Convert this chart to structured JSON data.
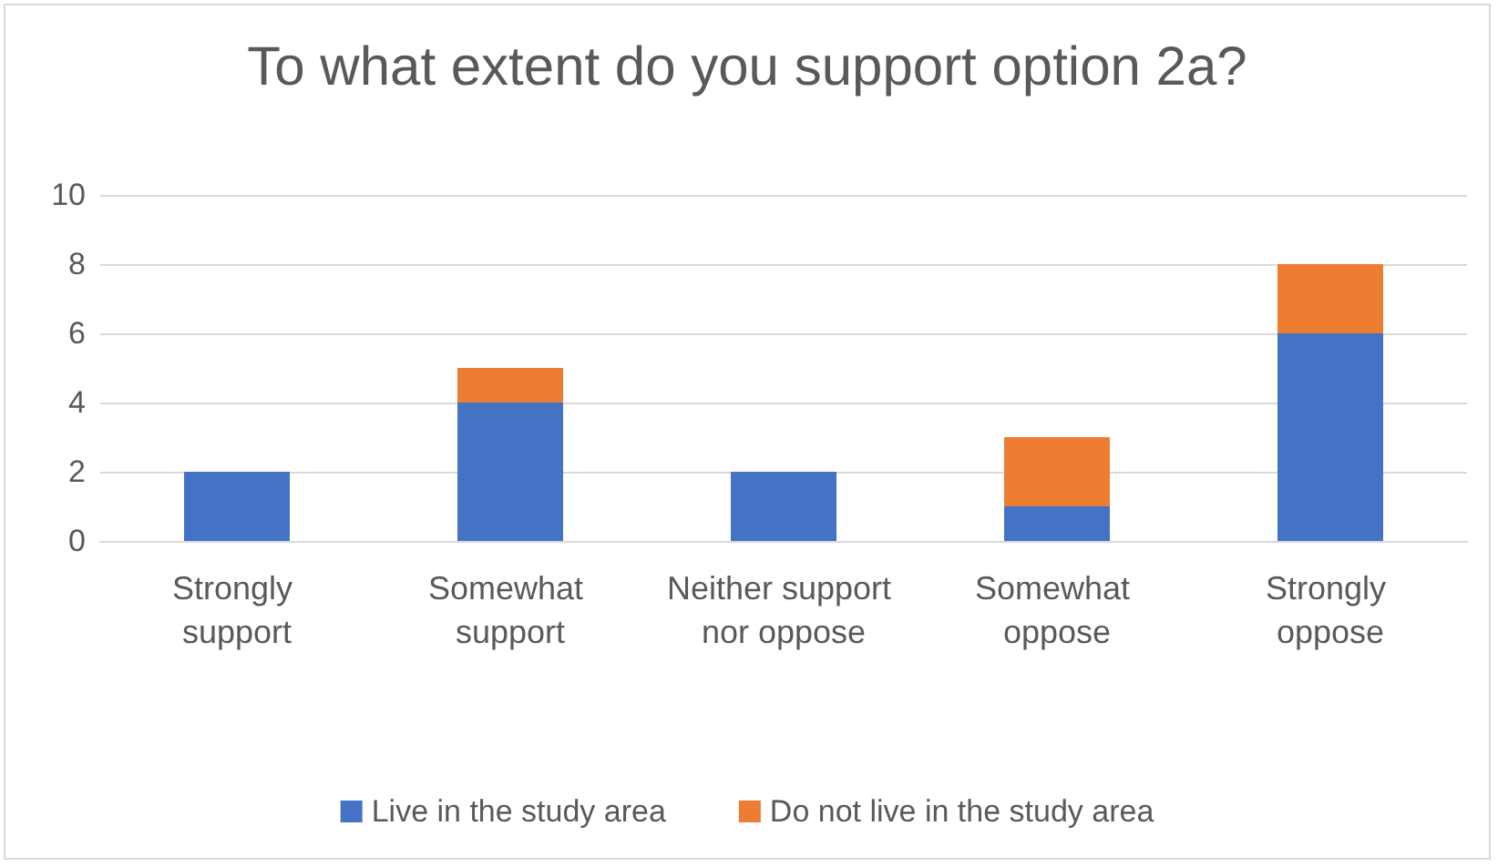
{
  "chart_data": {
    "type": "bar",
    "title": "To what extent do you support option 2a?",
    "categories": [
      "Strongly support",
      "Somewhat support",
      "Neither support nor oppose",
      "Somewhat oppose",
      "Strongly oppose"
    ],
    "series": [
      {
        "name": "Live in the study area",
        "color": "#4472c4",
        "values": [
          2,
          4,
          2,
          1,
          6
        ]
      },
      {
        "name": "Do not live in the study area",
        "color": "#ed7d31",
        "values": [
          0,
          1,
          0,
          2,
          2
        ]
      }
    ],
    "stacked": true,
    "ylim": [
      0,
      10
    ],
    "yticks": [
      0,
      2,
      4,
      6,
      8,
      10
    ],
    "grid": "y",
    "legend": "bottom"
  }
}
